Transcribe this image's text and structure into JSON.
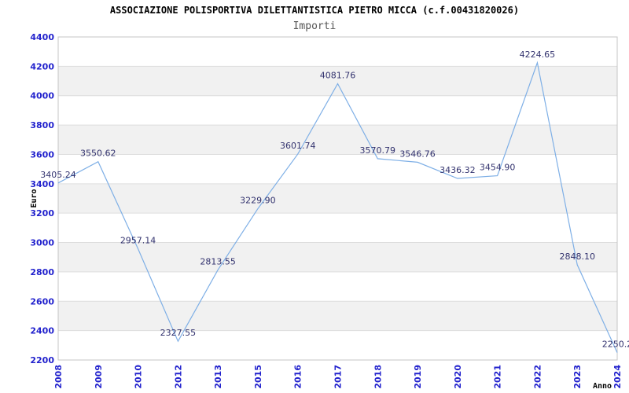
{
  "chart_data": {
    "type": "line",
    "title": "ASSOCIAZIONE POLISPORTIVA DILETTANTISTICA PIETRO MICCA (c.f.00431820026)",
    "subtitle": "Importi",
    "xlabel": "Anno",
    "ylabel": "Euro",
    "categories": [
      "2008",
      "2009",
      "2010",
      "2012",
      "2013",
      "2015",
      "2016",
      "2017",
      "2018",
      "2019",
      "2020",
      "2021",
      "2022",
      "2023",
      "2024"
    ],
    "values": [
      3405.24,
      3550.62,
      2957.14,
      2327.55,
      2813.55,
      3229.9,
      3601.74,
      4081.76,
      3570.79,
      3546.76,
      3436.32,
      3454.9,
      4224.65,
      2848.1,
      2250.2
    ],
    "point_labels": [
      "3405.24",
      "3550.62",
      "2957.14",
      "2327.55",
      "2813.55",
      "3229.90",
      "3601.74",
      "4081.76",
      "3570.79",
      "3546.76",
      "3436.32",
      "3454.90",
      "4224.65",
      "2848.10",
      "2250.2"
    ],
    "ylim": [
      2200,
      4400
    ],
    "ytick_step": 200,
    "yticks": [
      2200,
      2400,
      2600,
      2800,
      3000,
      3200,
      3400,
      3600,
      3800,
      4000,
      4200,
      4400
    ],
    "grid": "horizontal-bands",
    "legend": "none",
    "colors": {
      "line": "#7eafe6",
      "tick_label": "#2222cd",
      "point_label": "#32326e",
      "band": "#f1f1f1",
      "gridline": "#dedede",
      "frame": "#c4c4c4",
      "title": "#000000",
      "subtitle": "#555555",
      "axis_title": "#000000",
      "background": "#ffffff"
    }
  }
}
